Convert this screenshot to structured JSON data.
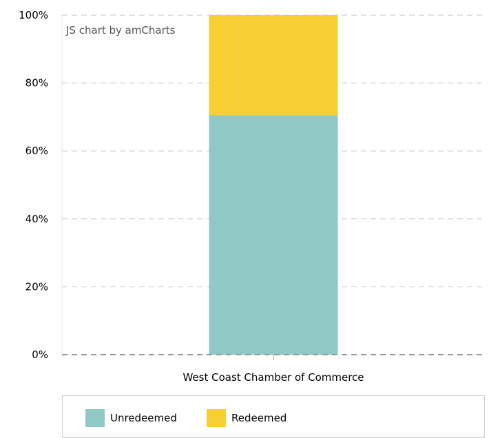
{
  "chart_data": {
    "type": "bar",
    "stacked": "100%",
    "categories": [
      "West Coast Chamber of Commerce"
    ],
    "series": [
      {
        "name": "Unredeemed",
        "values": [
          70.5
        ],
        "color": "#8fc8c4"
      },
      {
        "name": "Redeemed",
        "values": [
          29.5
        ],
        "color": "#f8cf32"
      }
    ],
    "ylim": [
      0,
      100
    ],
    "y_ticks": [
      "0%",
      "20%",
      "40%",
      "60%",
      "80%",
      "100%"
    ],
    "y_tick_values": [
      0,
      20,
      40,
      60,
      80,
      100
    ],
    "grid": "dashed horizontal",
    "legend_placement": "bottom",
    "credit": "JS chart by amCharts"
  }
}
